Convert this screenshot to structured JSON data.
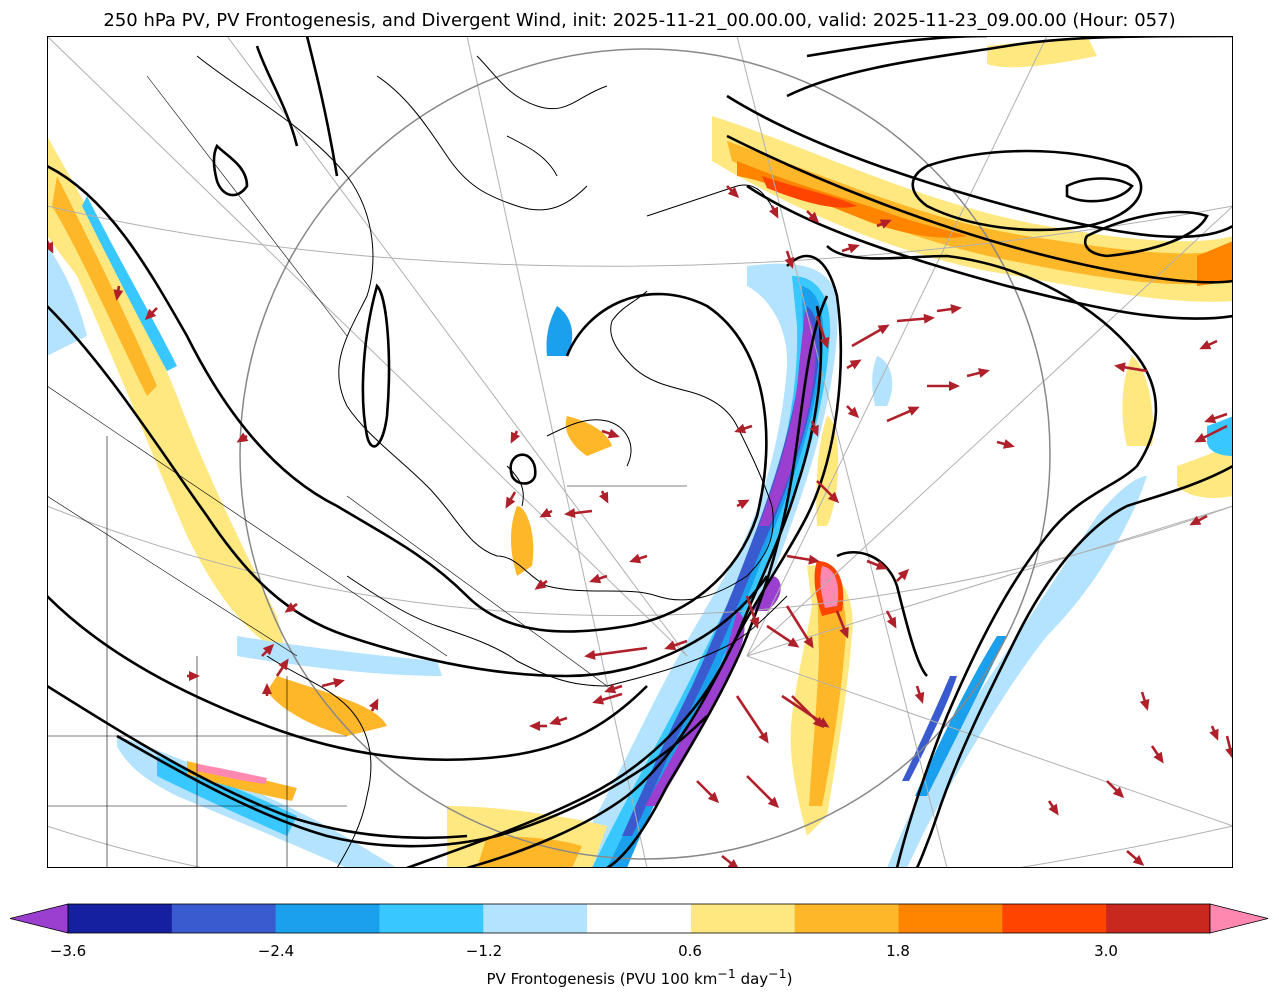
{
  "title": "250 hPa PV, PV Frontogenesis, and Divergent Wind, init: 2025-11-21_00.00.00, valid: 2025-11-23_09.00.00 (Hour: 057)",
  "colorbar": {
    "label": "PV Frontogenesis (PVU 100 km",
    "label_exp1": "−1",
    "label_mid": " day",
    "label_exp2": "−1",
    "label_end": ")",
    "ticks": [
      "−3.6",
      "−2.4",
      "−1.2",
      "0.6",
      "1.8",
      "3.0"
    ],
    "levels": [
      -3.6,
      -3.0,
      -2.4,
      -1.8,
      -1.2,
      -0.6,
      0.6,
      1.2,
      1.8,
      2.4,
      3.0,
      3.6
    ],
    "colors": [
      "#9b3fd0",
      "#1520a0",
      "#3a5bd0",
      "#1aa0ec",
      "#38c8ff",
      "#b3e3ff",
      "#ffffff",
      "#ffe880",
      "#ffb72a",
      "#ff8400",
      "#ff4400",
      "#c8281e",
      "#ff88b0"
    ]
  },
  "map": {
    "wind_arrow_color": "#b0202a",
    "contour_color": "#000000",
    "coast_color": "#000000"
  }
}
